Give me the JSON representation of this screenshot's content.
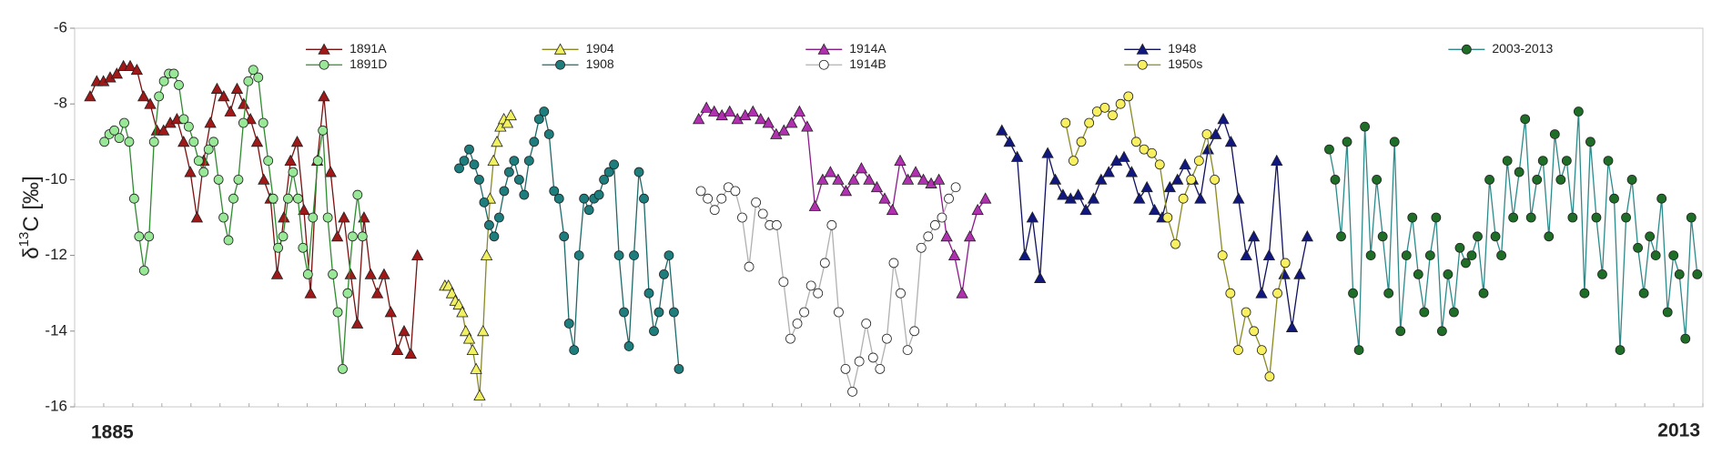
{
  "chart_data": {
    "type": "line",
    "ylabel": {
      "prefix": "δ",
      "sup": "13",
      "suffix": "C [‰]"
    },
    "x_labels": [
      "1885",
      "2013"
    ],
    "ylim": [
      -16,
      -6
    ],
    "yticks": [
      -6,
      -8,
      -10,
      -12,
      -14,
      -16
    ],
    "series": [
      {
        "name": "1891A",
        "color": "#a01818",
        "line_color": "#7a1010",
        "marker": "triangle",
        "values": [
          -7.8,
          -7.4,
          -7.4,
          -7.3,
          -7.2,
          -7.0,
          -7.0,
          -7.1,
          -7.8,
          -8.0,
          -8.7,
          -8.7,
          -8.5,
          -8.4,
          -9.0,
          -9.8,
          -11.0,
          -9.5,
          -8.5,
          -7.6,
          -7.8,
          -8.2,
          -7.6,
          -8.0,
          -8.4,
          -9.0,
          -10.0,
          -10.5,
          -12.5,
          -11.0,
          -9.5,
          -9.0,
          -10.8,
          -13.0,
          -9.5,
          -7.8,
          -9.8,
          -11.5,
          -11.0,
          -12.5,
          -13.8,
          -11.0,
          -12.5,
          -13.0,
          -12.5,
          -13.5,
          -14.5,
          -14.0,
          -14.6,
          -12.0
        ]
      },
      {
        "name": "1891D",
        "color": "#98e898",
        "line_color": "#2e8b2e",
        "marker": "circle",
        "values": [
          -9.0,
          -8.8,
          -8.7,
          -8.9,
          -8.5,
          -9.0,
          -10.5,
          -11.5,
          -12.4,
          -11.5,
          -9.0,
          -7.8,
          -7.4,
          -7.2,
          -7.2,
          -7.5,
          -8.4,
          -8.6,
          -9.0,
          -9.5,
          -9.8,
          -9.2,
          -9.0,
          -10.0,
          -11.0,
          -11.6,
          -10.5,
          -10.0,
          -8.5,
          -7.4,
          -7.1,
          -7.3,
          -8.5,
          -9.5,
          -10.5,
          -11.8,
          -11.5,
          -10.5,
          -9.8,
          -10.5,
          -11.8,
          -12.5,
          -11.0,
          -9.5,
          -8.7,
          -11.0,
          -12.5,
          -13.5,
          -15.0,
          -13.0,
          -11.5,
          -10.4,
          -11.5
        ]
      },
      {
        "name": "1904",
        "color": "#f0f060",
        "line_color": "#8a8a20",
        "marker": "triangle",
        "values": [
          -12.8,
          -12.8,
          -13.0,
          -13.2,
          -13.3,
          -13.5,
          -14.0,
          -14.2,
          -14.5,
          -15.0,
          -15.7,
          -14.0,
          -12.0,
          -10.5,
          -9.5,
          -9.0,
          -8.6,
          -8.4,
          -8.5,
          -8.3
        ]
      },
      {
        "name": "1908",
        "color": "#1e7d7d",
        "line_color": "#1e6a6a",
        "marker": "circle",
        "values": [
          -9.7,
          -9.5,
          -9.2,
          -9.6,
          -10.0,
          -10.6,
          -11.2,
          -11.5,
          -11.0,
          -10.3,
          -9.8,
          -9.5,
          -10.0,
          -10.4,
          -9.5,
          -9.0,
          -8.4,
          -8.2,
          -8.8,
          -10.3,
          -10.5,
          -11.5,
          -13.8,
          -14.5,
          -12.0,
          -10.5,
          -10.8,
          -10.5,
          -10.4,
          -10.0,
          -9.8,
          -9.6,
          -12.0,
          -13.5,
          -14.4,
          -12.0,
          -9.8,
          -10.5,
          -13.0,
          -14.0,
          -13.5,
          -12.5,
          -12.0,
          -13.5,
          -15.0
        ]
      },
      {
        "name": "1914A",
        "color": "#b030b0",
        "line_color": "#8a1a8a",
        "marker": "triangle",
        "values": [
          -8.4,
          -8.1,
          -8.2,
          -8.3,
          -8.2,
          -8.4,
          -8.3,
          -8.2,
          -8.4,
          -8.5,
          -8.8,
          -8.7,
          -8.5,
          -8.2,
          -8.6,
          -10.7,
          -10.0,
          -9.8,
          -10.0,
          -10.3,
          -10.0,
          -9.7,
          -10.0,
          -10.2,
          -10.5,
          -10.8,
          -9.5,
          -10.0,
          -9.8,
          -10.0,
          -10.1,
          -10.0,
          -11.5,
          -12.0,
          -13.0,
          -11.5,
          -10.8,
          -10.5
        ]
      },
      {
        "name": "1914B",
        "color": "#ffffff",
        "line_color": "#b0b0b0",
        "marker": "circle",
        "values": [
          -10.3,
          -10.5,
          -10.8,
          -10.5,
          -10.2,
          -10.3,
          -11.0,
          -12.3,
          -10.6,
          -10.9,
          -11.2,
          -11.2,
          -12.7,
          -14.2,
          -13.8,
          -13.5,
          -12.8,
          -13.0,
          -12.2,
          -11.2,
          -13.5,
          -15.0,
          -15.6,
          -14.8,
          -13.8,
          -14.7,
          -15.0,
          -14.2,
          -12.2,
          -13.0,
          -14.5,
          -14.0,
          -11.8,
          -11.5,
          -11.2,
          -11.0,
          -10.5,
          -10.2
        ]
      },
      {
        "name": "1948",
        "color": "#101880",
        "line_color": "#101060",
        "marker": "triangle",
        "values": [
          -8.7,
          -9.0,
          -9.4,
          -12.0,
          -11.0,
          -12.6,
          -9.3,
          -10.0,
          -10.4,
          -10.5,
          -10.4,
          -10.8,
          -10.5,
          -10.0,
          -9.8,
          -9.5,
          -9.4,
          -9.8,
          -10.5,
          -10.2,
          -10.8,
          -11.0,
          -10.2,
          -10.0,
          -9.6,
          -10.0,
          -10.5,
          -9.2,
          -8.8,
          -8.4,
          -9.0,
          -10.5,
          -12.0,
          -11.5,
          -13.0,
          -12.0,
          -9.5,
          -12.5,
          -13.9,
          -12.5,
          -11.5
        ]
      },
      {
        "name": "1950s",
        "color": "#f8f060",
        "line_color": "#8a8a20",
        "marker": "circle",
        "values": [
          -8.5,
          -9.5,
          -9.0,
          -8.5,
          -8.2,
          -8.1,
          -8.3,
          -8.0,
          -7.8,
          -9.0,
          -9.2,
          -9.3,
          -9.6,
          -11.0,
          -11.7,
          -10.5,
          -10.0,
          -9.5,
          -8.8,
          -10.0,
          -12.0,
          -13.0,
          -14.5,
          -13.5,
          -14.0,
          -14.5,
          -15.2,
          -13.0,
          -12.2
        ]
      },
      {
        "name": "2003-2013",
        "color": "#1e6e28",
        "line_color": "#2e8a8a",
        "marker": "circle",
        "values": [
          -9.2,
          -10.0,
          -11.5,
          -9.0,
          -13.0,
          -14.5,
          -8.6,
          -12.0,
          -10.0,
          -11.5,
          -13.0,
          -9.0,
          -14.0,
          -12.0,
          -11.0,
          -12.5,
          -13.5,
          -12.0,
          -11.0,
          -14.0,
          -12.5,
          -13.5,
          -11.8,
          -12.2,
          -12.0,
          -11.5,
          -13.0,
          -10.0,
          -11.5,
          -12.0,
          -9.5,
          -11.0,
          -9.8,
          -8.4,
          -11.0,
          -10.0,
          -9.5,
          -11.5,
          -8.8,
          -10.0,
          -9.5,
          -11.0,
          -8.2,
          -13.0,
          -9.0,
          -11.0,
          -12.5,
          -9.5,
          -10.5,
          -14.5,
          -11.0,
          -10.0,
          -11.8,
          -13.0,
          -11.5,
          -12.0,
          -10.5,
          -13.5,
          -12.0,
          -12.5,
          -14.2,
          -11.0,
          -12.5
        ]
      }
    ]
  }
}
